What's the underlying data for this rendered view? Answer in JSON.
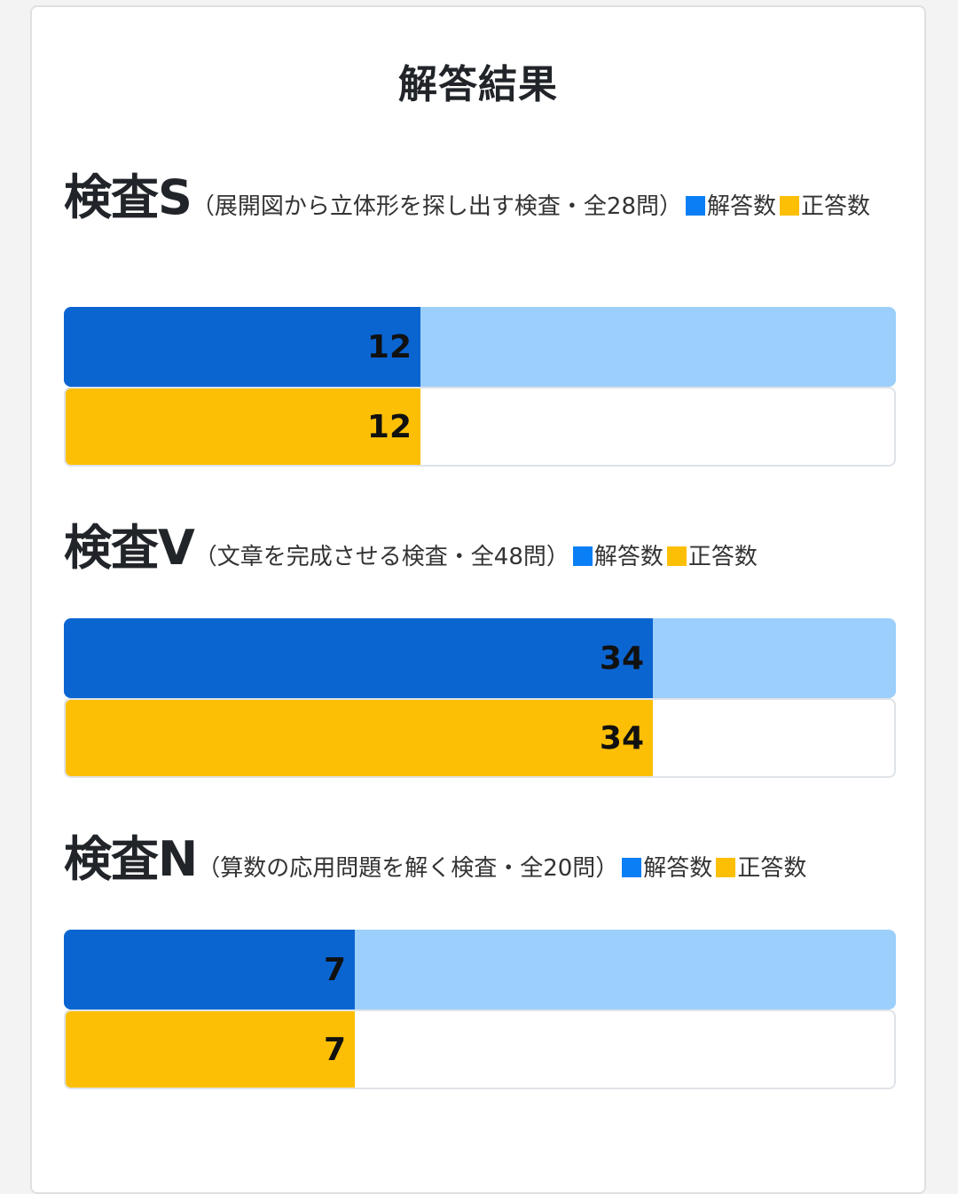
{
  "page": {
    "title": "解答結果"
  },
  "legend": {
    "answered_label": "解答数",
    "correct_label": "正答数",
    "answered_color": "#0a7ff5",
    "correct_color": "#fdbf05"
  },
  "chart_data": [
    {
      "type": "bar",
      "title": "検査S",
      "subtitle": "（展開図から立体形を探し出す検査・全28問）",
      "max": 28,
      "series": [
        {
          "name": "解答数",
          "values": [
            12
          ]
        },
        {
          "name": "正答数",
          "values": [
            12
          ]
        }
      ]
    },
    {
      "type": "bar",
      "title": "検査V",
      "subtitle": "（文章を完成させる検査・全48問）",
      "max": 48,
      "series": [
        {
          "name": "解答数",
          "values": [
            34
          ]
        },
        {
          "name": "正答数",
          "values": [
            34
          ]
        }
      ]
    },
    {
      "type": "bar",
      "title": "検査N",
      "subtitle": "（算数の応用問題を解く検査・全20問）",
      "max": 20,
      "series": [
        {
          "name": "解答数",
          "values": [
            7
          ]
        },
        {
          "name": "正答数",
          "values": [
            7
          ]
        }
      ]
    }
  ]
}
